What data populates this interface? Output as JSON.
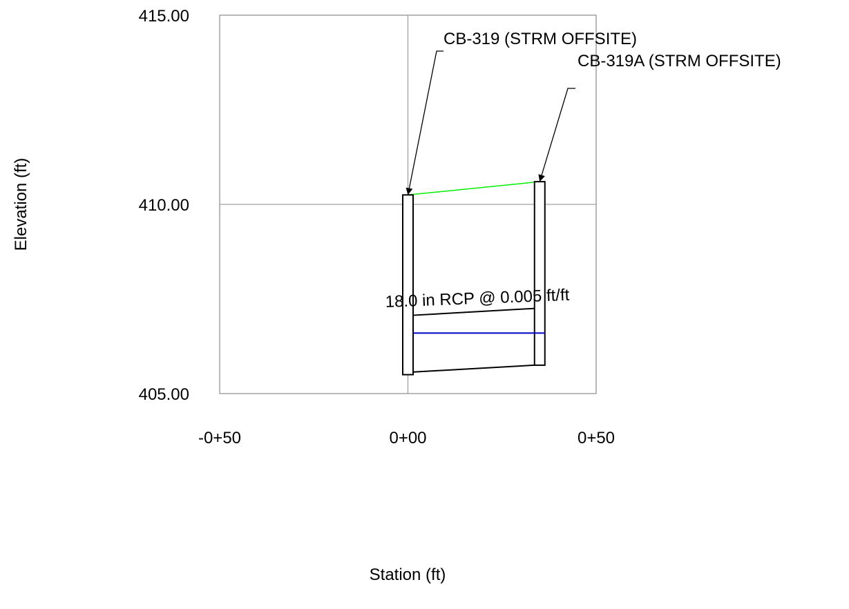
{
  "chart_data": {
    "type": "profile",
    "xlabel": "Station (ft)",
    "ylabel": "Elevation (ft)",
    "xlim": [
      -50,
      50
    ],
    "ylim": [
      405,
      415
    ],
    "grid": true,
    "x_ticks": [
      {
        "value": -50,
        "label": "-0+50"
      },
      {
        "value": 0,
        "label": "0+00"
      },
      {
        "value": 50,
        "label": "0+50"
      }
    ],
    "y_ticks": [
      {
        "value": 405,
        "label": "405.00"
      },
      {
        "value": 410,
        "label": "410.00"
      },
      {
        "value": 415,
        "label": "415.00"
      }
    ],
    "structures": [
      {
        "label": "CB-319 (STRM OFFSITE)",
        "station": 0,
        "bottom": 405.5,
        "rim": 410.25
      },
      {
        "label": "CB-319A (STRM OFFSITE)",
        "station": 35,
        "bottom": 405.75,
        "rim": 410.6
      }
    ],
    "pipe": {
      "label": "18.0 in RCP @ 0.005 ft/ft",
      "start_station": 1.5,
      "end_station": 33.5,
      "invert_start": 405.57,
      "invert_end": 405.75,
      "crown_start": 407.07,
      "crown_end": 407.25
    },
    "hgl": {
      "start_station": 1.5,
      "end_station": 36.5,
      "elevation": 406.6,
      "color": "#0000cc"
    },
    "egl": {
      "start_station": 0,
      "end_station": 35,
      "start_elev": 410.25,
      "end_elev": 410.6,
      "color": "#00ee00"
    }
  }
}
